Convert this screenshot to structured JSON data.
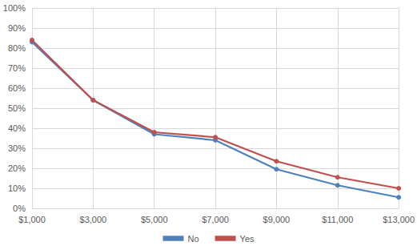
{
  "chart_data": {
    "type": "line",
    "categories": [
      "$1,000",
      "$3,000",
      "$5,000",
      "$7,000",
      "$9,000",
      "$11,000",
      "$13,000"
    ],
    "series": [
      {
        "name": "No",
        "color": "#4f81bd",
        "marker": "circle",
        "values": [
          83,
          54,
          37,
          34,
          19.5,
          11.5,
          5.5
        ]
      },
      {
        "name": "Yes",
        "color": "#c0504d",
        "marker": "circle",
        "values": [
          84,
          54,
          38,
          35.5,
          23.5,
          15.5,
          10
        ]
      }
    ],
    "ylim": [
      0,
      100
    ],
    "yticks": [
      {
        "value": 0,
        "label": "0%"
      },
      {
        "value": 10,
        "label": "10%"
      },
      {
        "value": 20,
        "label": "20%"
      },
      {
        "value": 30,
        "label": "30%"
      },
      {
        "value": 40,
        "label": "40%"
      },
      {
        "value": 50,
        "label": "50%"
      },
      {
        "value": 60,
        "label": "60%"
      },
      {
        "value": 70,
        "label": "70%"
      },
      {
        "value": 80,
        "label": "80%"
      },
      {
        "value": 90,
        "label": "90%"
      },
      {
        "value": 100,
        "label": "100%"
      }
    ],
    "grid": true,
    "legend": "bottom"
  }
}
